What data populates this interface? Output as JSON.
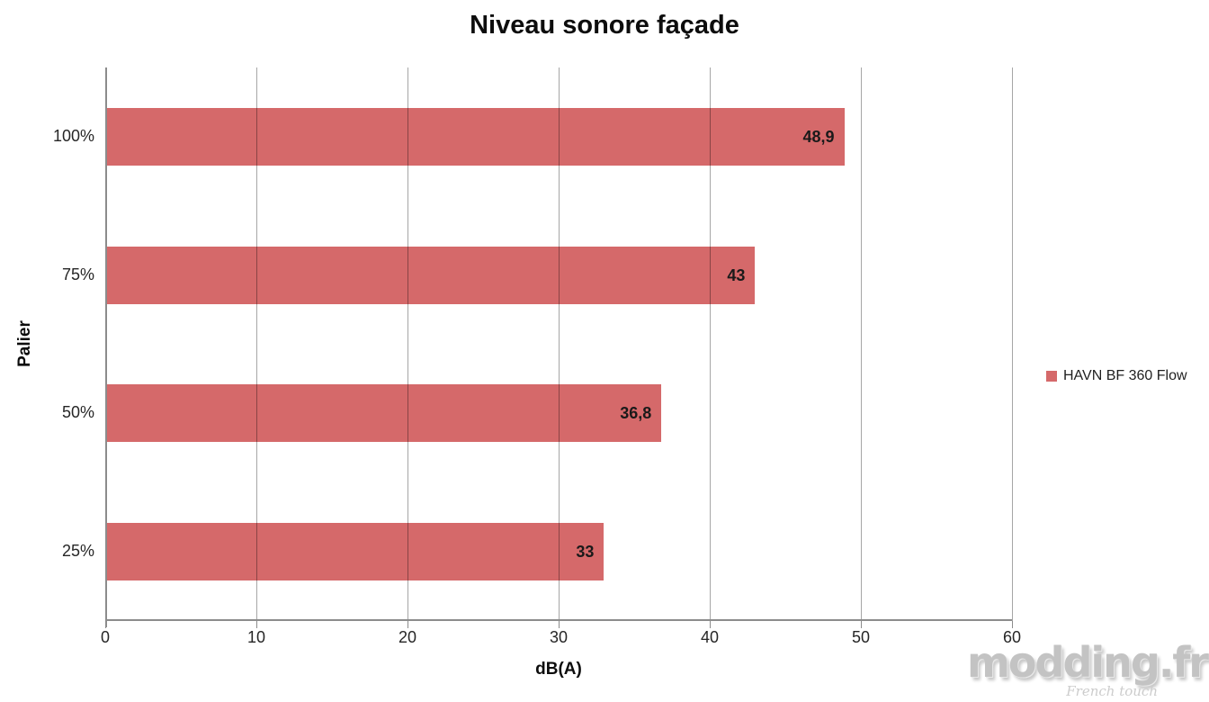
{
  "title": "Niveau sonore façade",
  "chart_data": {
    "type": "bar",
    "orientation": "horizontal",
    "title": "Niveau sonore façade",
    "categories": [
      "100%",
      "75%",
      "50%",
      "25%"
    ],
    "values": [
      48.9,
      43,
      36.8,
      33
    ],
    "value_labels": [
      "48,9",
      "43",
      "36,8",
      "33"
    ],
    "series": [
      {
        "name": "HAVN BF 360 Flow",
        "values": [
          48.9,
          43,
          36.8,
          33
        ]
      }
    ],
    "xlabel": "dB(A)",
    "ylabel": "Palier",
    "xlim": [
      0,
      60
    ],
    "xticks": [
      0,
      10,
      20,
      30,
      40,
      50,
      60
    ],
    "xtick_labels": [
      "0",
      "10",
      "20",
      "30",
      "40",
      "50",
      "60"
    ],
    "grid": "vertical",
    "legend_position": "right",
    "bar_color": "#D5696A",
    "gridline_color": "#A6A6A6",
    "axis_color": "#8C8C8C"
  },
  "legend": {
    "label": "HAVN BF 360 Flow",
    "marker_color": "#D5696A"
  },
  "watermark": {
    "text": "modding.fr",
    "subtext": "French touch"
  }
}
